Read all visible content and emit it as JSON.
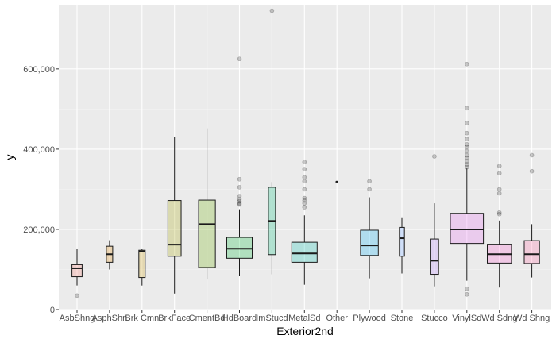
{
  "chart_data": {
    "type": "boxplot",
    "xlabel": "Exterior2nd",
    "ylabel": "y",
    "ylim": [
      0,
      760000
    ],
    "y_ticks": [
      0,
      200000,
      400000,
      600000
    ],
    "y_tick_labels": [
      "0",
      "200,000",
      "400,000",
      "600,000"
    ],
    "grid": true,
    "legend": "none",
    "categories": [
      "AsbShng",
      "AsphShn",
      "Brk Cmn",
      "BrkFace",
      "CmentBd",
      "HdBoard",
      "ImStucd",
      "MetalSd",
      "Other",
      "Plywood",
      "Stone",
      "Stucco",
      "VinylSd",
      "Wd Sdng",
      "Wd Shng"
    ],
    "boxes": [
      {
        "category": "AsbShng",
        "min": 60000,
        "q1": 82000,
        "median": 103000,
        "q3": 112000,
        "max": 152000,
        "outliers": [
          35000
        ],
        "width": 0.4,
        "color": "#f8766d"
      },
      {
        "category": "AsphShn",
        "min": 100000,
        "q1": 118000,
        "median": 138000,
        "q3": 158000,
        "max": 173000,
        "outliers": [],
        "width": 0.25,
        "color": "#e58700"
      },
      {
        "category": "Brk Cmn",
        "min": 60000,
        "q1": 80000,
        "median": 145000,
        "q3": 148000,
        "max": 152000,
        "outliers": [],
        "width": 0.25,
        "color": "#c99800"
      },
      {
        "category": "BrkFace",
        "min": 40000,
        "q1": 133000,
        "median": 162000,
        "q3": 272000,
        "max": 430000,
        "outliers": [],
        "width": 0.52,
        "color": "#a3a500"
      },
      {
        "category": "CmentBd",
        "min": 75000,
        "q1": 105000,
        "median": 213000,
        "q3": 273000,
        "max": 452000,
        "outliers": [],
        "width": 0.66,
        "color": "#6bb100"
      },
      {
        "category": "HdBoard",
        "min": 85000,
        "q1": 128000,
        "median": 152000,
        "q3": 180000,
        "max": 250000,
        "outliers": [
          262000,
          265000,
          270000,
          275000,
          283000,
          305000,
          325000,
          625000
        ],
        "width": 1.0,
        "color": "#00ba38"
      },
      {
        "category": "ImStucd",
        "min": 88000,
        "q1": 137000,
        "median": 221000,
        "q3": 305000,
        "max": 318000,
        "outliers": [
          745000
        ],
        "width": 0.28,
        "color": "#00bf7d"
      },
      {
        "category": "MetalSd",
        "min": 62000,
        "q1": 118000,
        "median": 140000,
        "q3": 168000,
        "max": 235000,
        "outliers": [
          255000,
          265000,
          272000,
          278000,
          300000,
          320000,
          330000,
          350000,
          368000
        ],
        "width": 1.0,
        "color": "#00c0af"
      },
      {
        "category": "Other",
        "min": 319000,
        "q1": 319000,
        "median": 319000,
        "q3": 319000,
        "max": 319000,
        "outliers": [],
        "width": 0.08,
        "color": "#00bcd8"
      },
      {
        "category": "Plywood",
        "min": 78000,
        "q1": 135000,
        "median": 160000,
        "q3": 198000,
        "max": 280000,
        "outliers": [
          300000,
          320000
        ],
        "width": 0.7,
        "color": "#00b0f6"
      },
      {
        "category": "Stone",
        "min": 90000,
        "q1": 133000,
        "median": 178000,
        "q3": 205000,
        "max": 230000,
        "outliers": [],
        "width": 0.2,
        "color": "#619cff"
      },
      {
        "category": "Stucco",
        "min": 58000,
        "q1": 88000,
        "median": 122000,
        "q3": 176000,
        "max": 265000,
        "outliers": [
          382000
        ],
        "width": 0.33,
        "color": "#b983ff"
      },
      {
        "category": "VinylSd",
        "min": 72000,
        "q1": 165000,
        "median": 200000,
        "q3": 240000,
        "max": 352000,
        "outliers": [
          38000,
          52000,
          355000,
          362000,
          370000,
          378000,
          385000,
          395000,
          405000,
          412000,
          425000,
          440000,
          465000,
          502000,
          612000
        ],
        "width": 1.3,
        "color": "#e76bf3"
      },
      {
        "category": "Wd Sdng",
        "min": 55000,
        "q1": 116000,
        "median": 138000,
        "q3": 163000,
        "max": 222000,
        "outliers": [
          238000,
          242000,
          290000,
          300000,
          340000,
          358000
        ],
        "width": 0.95,
        "color": "#fd61d1"
      },
      {
        "category": "Wd Shng",
        "min": 80000,
        "q1": 115000,
        "median": 138000,
        "q3": 172000,
        "max": 213000,
        "outliers": [
          345000,
          385000
        ],
        "width": 0.6,
        "color": "#ff67a4"
      }
    ]
  }
}
